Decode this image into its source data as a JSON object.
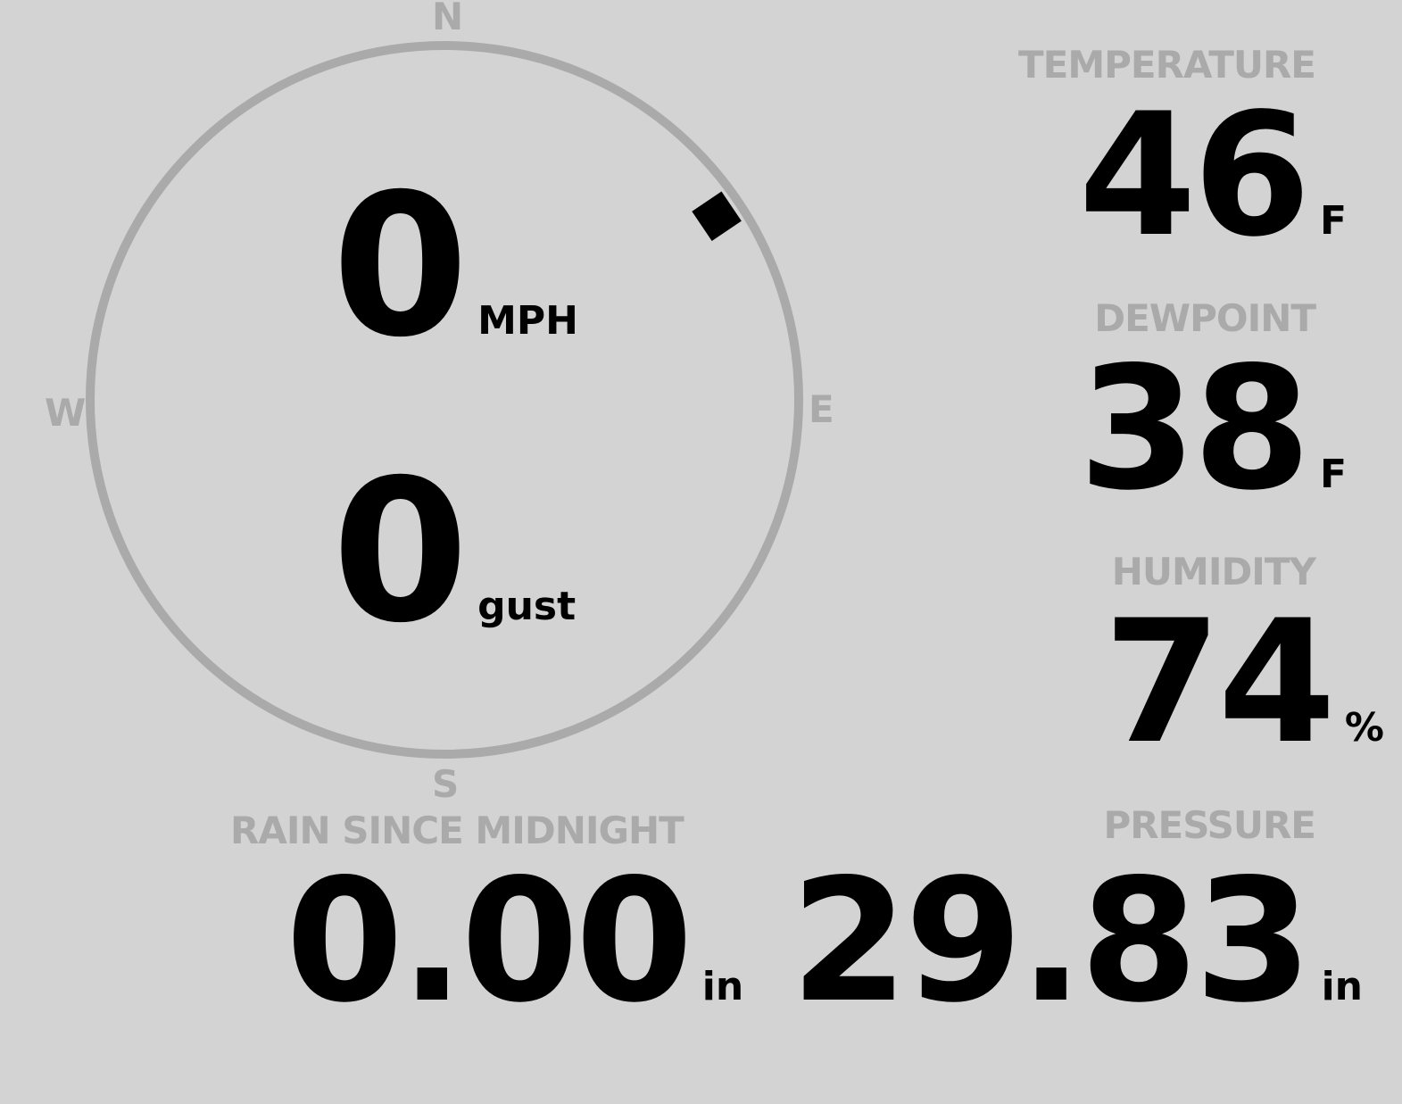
{
  "compass": {
    "n": "N",
    "e": "E",
    "s": "S",
    "w": "W",
    "direction_deg": 56,
    "ring_color": "#aaaaaa",
    "marker_color": "#000000"
  },
  "wind": {
    "speed": "0",
    "speed_unit": "MPH",
    "gust": "0",
    "gust_unit": "gust"
  },
  "temperature": {
    "label": "TEMPERATURE",
    "value": "46",
    "unit": "F"
  },
  "dewpoint": {
    "label": "DEWPOINT",
    "value": "38",
    "unit": "F"
  },
  "humidity": {
    "label": "HUMIDITY",
    "value": "74",
    "unit": "%"
  },
  "rain": {
    "label": "RAIN SINCE MIDNIGHT",
    "value": "0.00",
    "unit": "in"
  },
  "pressure": {
    "label": "PRESSURE",
    "value": "29.83",
    "unit": "in"
  },
  "colors": {
    "background": "#d3d3d3",
    "label": "#aaaaaa",
    "value": "#000000"
  }
}
